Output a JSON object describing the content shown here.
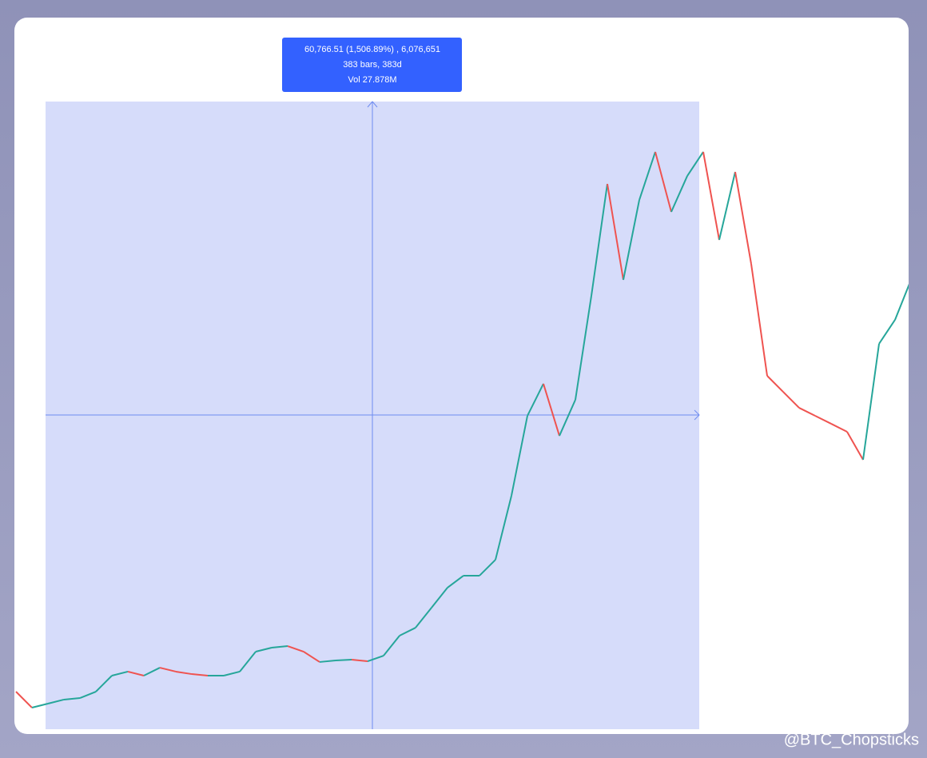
{
  "chart_data": {
    "type": "line",
    "values": [
      7670,
      6120,
      6510,
      6900,
      7050,
      7670,
      9220,
      9610,
      9220,
      9990,
      9610,
      9370,
      9220,
      9220,
      9610,
      11540,
      11930,
      12080,
      11540,
      10540,
      10690,
      10770,
      10610,
      11150,
      13090,
      13860,
      15800,
      17740,
      18900,
      18900,
      20440,
      26640,
      34380,
      37480,
      32440,
      35930,
      45990,
      56830,
      47540,
      55280,
      59930,
      54120,
      57600,
      59930,
      51410,
      57990,
      49090,
      38250,
      36700,
      35150,
      34380,
      33610,
      32830,
      30120,
      41350,
      43670,
      47540
    ],
    "up_color": "#26a69a",
    "down_color": "#ef5350",
    "ylim": [
      3800,
      72700
    ],
    "measure": {
      "lines": [
        "60,766.51 (1,506.89%) , 6,076,651",
        "383 bars, 383d",
        "Vol 27.878M"
      ]
    }
  },
  "watermark": "@BTC_Chopsticks"
}
